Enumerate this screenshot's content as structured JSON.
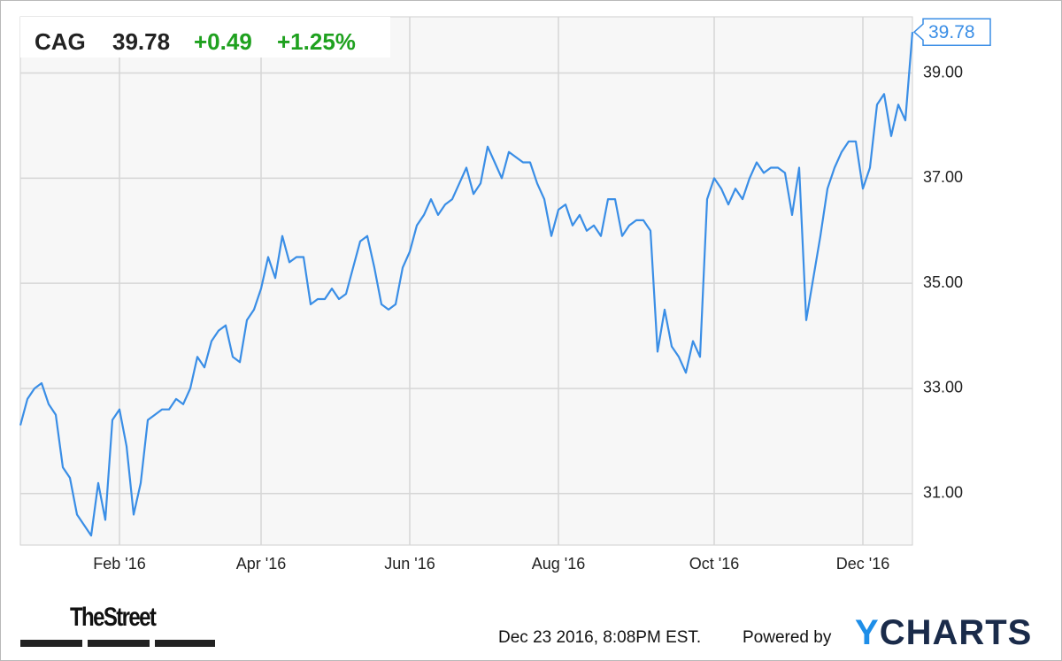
{
  "header": {
    "symbol": "CAG",
    "price": "39.78",
    "change": "+0.49",
    "change_pct": "+1.25%"
  },
  "chart_data": {
    "type": "line",
    "categories": [
      null,
      null,
      null,
      null,
      null,
      null,
      null,
      null,
      null,
      null,
      null,
      null,
      null,
      null,
      "Feb '16",
      null,
      null,
      null,
      null,
      null,
      null,
      null,
      null,
      null,
      null,
      null,
      null,
      null,
      null,
      null,
      null,
      null,
      null,
      null,
      "Apr '16",
      null,
      null,
      null,
      null,
      null,
      null,
      null,
      null,
      null,
      null,
      null,
      null,
      null,
      null,
      null,
      null,
      null,
      null,
      null,
      null,
      "Jun '16",
      null,
      null,
      null,
      null,
      null,
      null,
      null,
      null,
      null,
      null,
      null,
      null,
      null,
      null,
      null,
      null,
      null,
      null,
      null,
      null,
      "Aug '16",
      null,
      null,
      null,
      null,
      null,
      null,
      null,
      null,
      null,
      null,
      null,
      null,
      null,
      null,
      null,
      null,
      null,
      null,
      null,
      null,
      null,
      "Oct '16",
      null,
      null,
      null,
      null,
      null,
      null,
      null,
      null,
      null,
      null,
      null,
      null,
      null,
      null,
      null,
      null,
      null,
      null,
      null,
      null,
      "Dec '16",
      null,
      null,
      null,
      null,
      null,
      null,
      null
    ],
    "series": [
      {
        "name": "CAG",
        "color": "#3a8ee6",
        "values": [
          32.3,
          32.8,
          33.0,
          33.1,
          32.7,
          32.5,
          31.5,
          31.3,
          30.6,
          30.4,
          30.2,
          31.2,
          30.5,
          32.4,
          32.6,
          31.9,
          30.6,
          31.2,
          32.4,
          32.5,
          32.6,
          32.6,
          32.8,
          32.7,
          33.0,
          33.6,
          33.4,
          33.9,
          34.1,
          34.2,
          33.6,
          33.5,
          34.3,
          34.5,
          34.9,
          35.5,
          35.1,
          35.9,
          35.4,
          35.5,
          35.5,
          34.6,
          34.7,
          34.7,
          34.9,
          34.7,
          34.8,
          35.3,
          35.8,
          35.9,
          35.3,
          34.6,
          34.5,
          34.6,
          35.3,
          35.6,
          36.1,
          36.3,
          36.6,
          36.3,
          36.5,
          36.6,
          36.9,
          37.2,
          36.7,
          36.9,
          37.6,
          37.3,
          37.0,
          37.5,
          37.4,
          37.3,
          37.3,
          36.9,
          36.6,
          35.9,
          36.4,
          36.5,
          36.1,
          36.3,
          36.0,
          36.1,
          35.9,
          36.6,
          36.6,
          35.9,
          36.1,
          36.2,
          36.2,
          36.0,
          33.7,
          34.5,
          33.8,
          33.6,
          33.3,
          33.9,
          33.6,
          36.6,
          37.0,
          36.8,
          36.5,
          36.8,
          36.6,
          37.0,
          37.3,
          37.1,
          37.2,
          37.2,
          37.1,
          36.3,
          37.2,
          34.3,
          35.1,
          35.9,
          36.8,
          37.2,
          37.5,
          37.7,
          37.7,
          36.8,
          37.2,
          38.4,
          38.6,
          37.8,
          38.4,
          38.1,
          39.78
        ]
      }
    ],
    "ylim": [
      30.02,
      40.07
    ],
    "yticks": [
      {
        "value": 31,
        "label": "31.00"
      },
      {
        "value": 33,
        "label": "33.00"
      },
      {
        "value": 35,
        "label": "35.00"
      },
      {
        "value": 37,
        "label": "37.00"
      },
      {
        "value": 39,
        "label": "39.00"
      }
    ],
    "grid": true
  },
  "footer": {
    "source": "TheStreet",
    "timestamp": "Dec 23 2016, 8:08PM EST.",
    "powered_by": "Powered by",
    "brand": "YCHARTS"
  }
}
